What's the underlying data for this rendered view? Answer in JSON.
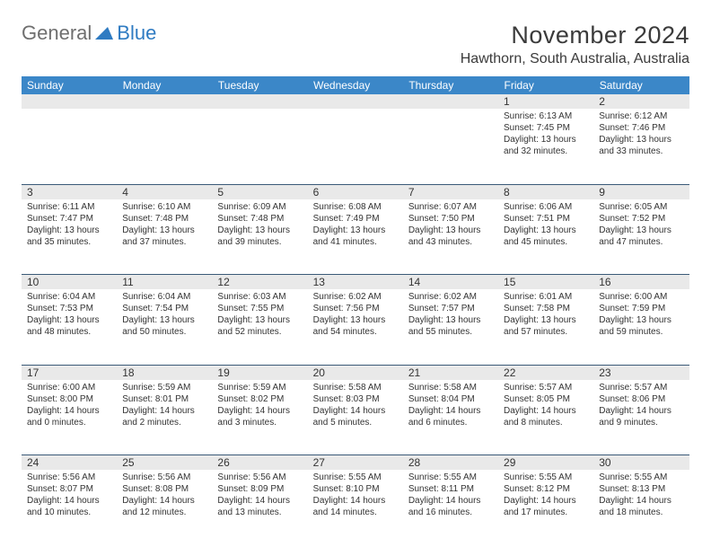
{
  "logo": {
    "general": "General",
    "blue": "Blue"
  },
  "title": "November 2024",
  "location": "Hawthorn, South Australia, Australia",
  "colors": {
    "header_bg": "#3b87c8",
    "header_text": "#ffffff",
    "daynum_bg": "#e9e9e9",
    "border": "#3b5a78",
    "logo_gray": "#6f6f6f",
    "logo_blue": "#2f7bc2"
  },
  "day_names": [
    "Sunday",
    "Monday",
    "Tuesday",
    "Wednesday",
    "Thursday",
    "Friday",
    "Saturday"
  ],
  "weeks": [
    [
      {
        "n": "",
        "sunrise": "",
        "sunset": "",
        "daylight": ""
      },
      {
        "n": "",
        "sunrise": "",
        "sunset": "",
        "daylight": ""
      },
      {
        "n": "",
        "sunrise": "",
        "sunset": "",
        "daylight": ""
      },
      {
        "n": "",
        "sunrise": "",
        "sunset": "",
        "daylight": ""
      },
      {
        "n": "",
        "sunrise": "",
        "sunset": "",
        "daylight": ""
      },
      {
        "n": "1",
        "sunrise": "Sunrise: 6:13 AM",
        "sunset": "Sunset: 7:45 PM",
        "daylight": "Daylight: 13 hours and 32 minutes."
      },
      {
        "n": "2",
        "sunrise": "Sunrise: 6:12 AM",
        "sunset": "Sunset: 7:46 PM",
        "daylight": "Daylight: 13 hours and 33 minutes."
      }
    ],
    [
      {
        "n": "3",
        "sunrise": "Sunrise: 6:11 AM",
        "sunset": "Sunset: 7:47 PM",
        "daylight": "Daylight: 13 hours and 35 minutes."
      },
      {
        "n": "4",
        "sunrise": "Sunrise: 6:10 AM",
        "sunset": "Sunset: 7:48 PM",
        "daylight": "Daylight: 13 hours and 37 minutes."
      },
      {
        "n": "5",
        "sunrise": "Sunrise: 6:09 AM",
        "sunset": "Sunset: 7:48 PM",
        "daylight": "Daylight: 13 hours and 39 minutes."
      },
      {
        "n": "6",
        "sunrise": "Sunrise: 6:08 AM",
        "sunset": "Sunset: 7:49 PM",
        "daylight": "Daylight: 13 hours and 41 minutes."
      },
      {
        "n": "7",
        "sunrise": "Sunrise: 6:07 AM",
        "sunset": "Sunset: 7:50 PM",
        "daylight": "Daylight: 13 hours and 43 minutes."
      },
      {
        "n": "8",
        "sunrise": "Sunrise: 6:06 AM",
        "sunset": "Sunset: 7:51 PM",
        "daylight": "Daylight: 13 hours and 45 minutes."
      },
      {
        "n": "9",
        "sunrise": "Sunrise: 6:05 AM",
        "sunset": "Sunset: 7:52 PM",
        "daylight": "Daylight: 13 hours and 47 minutes."
      }
    ],
    [
      {
        "n": "10",
        "sunrise": "Sunrise: 6:04 AM",
        "sunset": "Sunset: 7:53 PM",
        "daylight": "Daylight: 13 hours and 48 minutes."
      },
      {
        "n": "11",
        "sunrise": "Sunrise: 6:04 AM",
        "sunset": "Sunset: 7:54 PM",
        "daylight": "Daylight: 13 hours and 50 minutes."
      },
      {
        "n": "12",
        "sunrise": "Sunrise: 6:03 AM",
        "sunset": "Sunset: 7:55 PM",
        "daylight": "Daylight: 13 hours and 52 minutes."
      },
      {
        "n": "13",
        "sunrise": "Sunrise: 6:02 AM",
        "sunset": "Sunset: 7:56 PM",
        "daylight": "Daylight: 13 hours and 54 minutes."
      },
      {
        "n": "14",
        "sunrise": "Sunrise: 6:02 AM",
        "sunset": "Sunset: 7:57 PM",
        "daylight": "Daylight: 13 hours and 55 minutes."
      },
      {
        "n": "15",
        "sunrise": "Sunrise: 6:01 AM",
        "sunset": "Sunset: 7:58 PM",
        "daylight": "Daylight: 13 hours and 57 minutes."
      },
      {
        "n": "16",
        "sunrise": "Sunrise: 6:00 AM",
        "sunset": "Sunset: 7:59 PM",
        "daylight": "Daylight: 13 hours and 59 minutes."
      }
    ],
    [
      {
        "n": "17",
        "sunrise": "Sunrise: 6:00 AM",
        "sunset": "Sunset: 8:00 PM",
        "daylight": "Daylight: 14 hours and 0 minutes."
      },
      {
        "n": "18",
        "sunrise": "Sunrise: 5:59 AM",
        "sunset": "Sunset: 8:01 PM",
        "daylight": "Daylight: 14 hours and 2 minutes."
      },
      {
        "n": "19",
        "sunrise": "Sunrise: 5:59 AM",
        "sunset": "Sunset: 8:02 PM",
        "daylight": "Daylight: 14 hours and 3 minutes."
      },
      {
        "n": "20",
        "sunrise": "Sunrise: 5:58 AM",
        "sunset": "Sunset: 8:03 PM",
        "daylight": "Daylight: 14 hours and 5 minutes."
      },
      {
        "n": "21",
        "sunrise": "Sunrise: 5:58 AM",
        "sunset": "Sunset: 8:04 PM",
        "daylight": "Daylight: 14 hours and 6 minutes."
      },
      {
        "n": "22",
        "sunrise": "Sunrise: 5:57 AM",
        "sunset": "Sunset: 8:05 PM",
        "daylight": "Daylight: 14 hours and 8 minutes."
      },
      {
        "n": "23",
        "sunrise": "Sunrise: 5:57 AM",
        "sunset": "Sunset: 8:06 PM",
        "daylight": "Daylight: 14 hours and 9 minutes."
      }
    ],
    [
      {
        "n": "24",
        "sunrise": "Sunrise: 5:56 AM",
        "sunset": "Sunset: 8:07 PM",
        "daylight": "Daylight: 14 hours and 10 minutes."
      },
      {
        "n": "25",
        "sunrise": "Sunrise: 5:56 AM",
        "sunset": "Sunset: 8:08 PM",
        "daylight": "Daylight: 14 hours and 12 minutes."
      },
      {
        "n": "26",
        "sunrise": "Sunrise: 5:56 AM",
        "sunset": "Sunset: 8:09 PM",
        "daylight": "Daylight: 14 hours and 13 minutes."
      },
      {
        "n": "27",
        "sunrise": "Sunrise: 5:55 AM",
        "sunset": "Sunset: 8:10 PM",
        "daylight": "Daylight: 14 hours and 14 minutes."
      },
      {
        "n": "28",
        "sunrise": "Sunrise: 5:55 AM",
        "sunset": "Sunset: 8:11 PM",
        "daylight": "Daylight: 14 hours and 16 minutes."
      },
      {
        "n": "29",
        "sunrise": "Sunrise: 5:55 AM",
        "sunset": "Sunset: 8:12 PM",
        "daylight": "Daylight: 14 hours and 17 minutes."
      },
      {
        "n": "30",
        "sunrise": "Sunrise: 5:55 AM",
        "sunset": "Sunset: 8:13 PM",
        "daylight": "Daylight: 14 hours and 18 minutes."
      }
    ]
  ]
}
